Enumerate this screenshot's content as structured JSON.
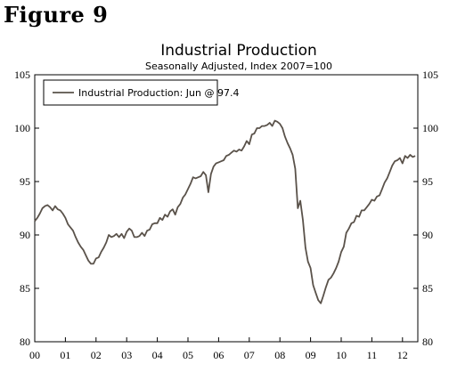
{
  "figure_label": "Figure 9",
  "chart_data": {
    "type": "line",
    "title": "Industrial Production",
    "subtitle": "Seasonally Adjusted, Index 2007=100",
    "ylim": [
      80,
      105
    ],
    "yticks": [
      80,
      85,
      90,
      95,
      100,
      105
    ],
    "xlim": [
      2000.0,
      2012.5
    ],
    "xtick_labels": [
      "00",
      "01",
      "02",
      "03",
      "04",
      "05",
      "06",
      "07",
      "08",
      "09",
      "10",
      "11",
      "12"
    ],
    "grid": false,
    "legend_position": "top-left",
    "line_color": "#5a524a",
    "series": [
      {
        "name": "Industrial Production: Jun @ 97.4",
        "x": [
          2000.0,
          2000.083,
          2000.167,
          2000.25,
          2000.333,
          2000.417,
          2000.5,
          2000.583,
          2000.667,
          2000.75,
          2000.833,
          2000.917,
          2001.0,
          2001.083,
          2001.167,
          2001.25,
          2001.333,
          2001.417,
          2001.5,
          2001.583,
          2001.667,
          2001.75,
          2001.833,
          2001.917,
          2002.0,
          2002.083,
          2002.167,
          2002.25,
          2002.333,
          2002.417,
          2002.5,
          2002.583,
          2002.667,
          2002.75,
          2002.833,
          2002.917,
          2003.0,
          2003.083,
          2003.167,
          2003.25,
          2003.333,
          2003.417,
          2003.5,
          2003.583,
          2003.667,
          2003.75,
          2003.833,
          2003.917,
          2004.0,
          2004.083,
          2004.167,
          2004.25,
          2004.333,
          2004.417,
          2004.5,
          2004.583,
          2004.667,
          2004.75,
          2004.833,
          2004.917,
          2005.0,
          2005.083,
          2005.167,
          2005.25,
          2005.333,
          2005.417,
          2005.5,
          2005.583,
          2005.667,
          2005.75,
          2005.833,
          2005.917,
          2006.0,
          2006.083,
          2006.167,
          2006.25,
          2006.333,
          2006.417,
          2006.5,
          2006.583,
          2006.667,
          2006.75,
          2006.833,
          2006.917,
          2007.0,
          2007.083,
          2007.167,
          2007.25,
          2007.333,
          2007.417,
          2007.5,
          2007.583,
          2007.667,
          2007.75,
          2007.833,
          2007.917,
          2008.0,
          2008.083,
          2008.167,
          2008.25,
          2008.333,
          2008.417,
          2008.5,
          2008.583,
          2008.667,
          2008.75,
          2008.833,
          2008.917,
          2009.0,
          2009.083,
          2009.167,
          2009.25,
          2009.333,
          2009.417,
          2009.5,
          2009.583,
          2009.667,
          2009.75,
          2009.833,
          2009.917,
          2010.0,
          2010.083,
          2010.167,
          2010.25,
          2010.333,
          2010.417,
          2010.5,
          2010.583,
          2010.667,
          2010.75,
          2010.833,
          2010.917,
          2011.0,
          2011.083,
          2011.167,
          2011.25,
          2011.333,
          2011.417,
          2011.5,
          2011.583,
          2011.667,
          2011.75,
          2011.833,
          2011.917,
          2012.0,
          2012.083,
          2012.167,
          2012.25,
          2012.333,
          2012.417
        ],
        "y": [
          91.3,
          91.6,
          92.0,
          92.5,
          92.7,
          92.8,
          92.6,
          92.3,
          92.7,
          92.4,
          92.3,
          92.0,
          91.6,
          91.0,
          90.7,
          90.4,
          89.8,
          89.3,
          88.9,
          88.6,
          88.1,
          87.6,
          87.3,
          87.3,
          87.8,
          87.9,
          88.4,
          88.8,
          89.3,
          90.0,
          89.8,
          89.9,
          90.1,
          89.8,
          90.1,
          89.7,
          90.3,
          90.6,
          90.4,
          89.8,
          89.8,
          89.9,
          90.2,
          89.9,
          90.4,
          90.5,
          91.0,
          91.1,
          91.1,
          91.6,
          91.4,
          91.9,
          91.7,
          92.2,
          92.4,
          91.9,
          92.6,
          92.9,
          93.5,
          93.8,
          94.3,
          94.8,
          95.4,
          95.3,
          95.4,
          95.5,
          95.9,
          95.6,
          94.0,
          95.7,
          96.4,
          96.7,
          96.8,
          96.9,
          97.0,
          97.4,
          97.5,
          97.7,
          97.9,
          97.8,
          98.0,
          97.9,
          98.3,
          98.8,
          98.5,
          99.4,
          99.5,
          100.0,
          100.0,
          100.2,
          100.2,
          100.3,
          100.5,
          100.2,
          100.7,
          100.6,
          100.4,
          100.0,
          99.2,
          98.6,
          98.1,
          97.5,
          96.2,
          92.5,
          93.2,
          91.4,
          88.8,
          87.5,
          86.9,
          85.3,
          84.6,
          83.9,
          83.6,
          84.3,
          85.1,
          85.8,
          86.0,
          86.4,
          86.9,
          87.5,
          88.4,
          88.9,
          90.2,
          90.6,
          91.1,
          91.2,
          91.8,
          91.7,
          92.3,
          92.3,
          92.6,
          92.9,
          93.3,
          93.2,
          93.6,
          93.7,
          94.3,
          94.9,
          95.3,
          95.9,
          96.5,
          96.9,
          97.0,
          97.2,
          96.7,
          97.4,
          97.2,
          97.5,
          97.3,
          97.4
        ]
      }
    ]
  }
}
